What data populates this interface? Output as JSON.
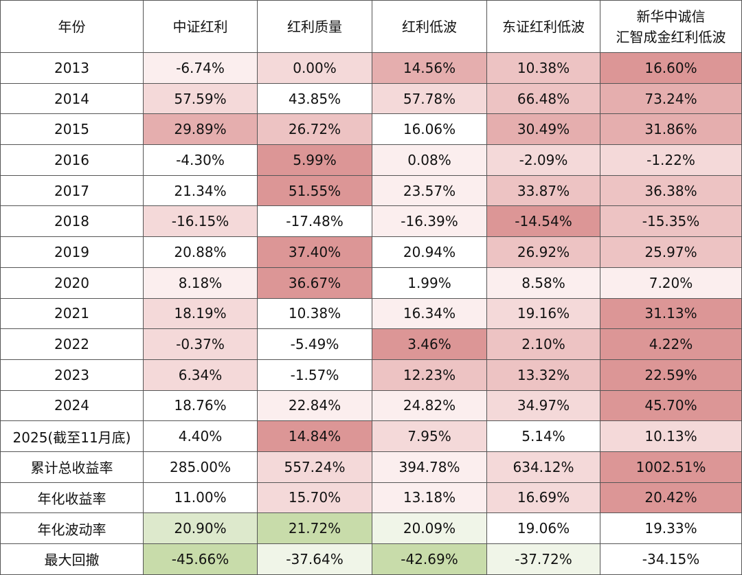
{
  "table": {
    "header": [
      "年份",
      "中证红利",
      "红利质量",
      "红利低波",
      "东证红利低波",
      "新华中诚信\n汇智成金红利低波"
    ],
    "rows": [
      [
        "2013",
        "-6.74%",
        "0.00%",
        "14.56%",
        "10.38%",
        "16.60%"
      ],
      [
        "2014",
        "57.59%",
        "43.85%",
        "57.78%",
        "66.48%",
        "73.24%"
      ],
      [
        "2015",
        "29.89%",
        "26.72%",
        "16.06%",
        "30.49%",
        "31.86%"
      ],
      [
        "2016",
        "-4.30%",
        "5.99%",
        "0.08%",
        "-2.09%",
        "-1.22%"
      ],
      [
        "2017",
        "21.34%",
        "51.55%",
        "23.57%",
        "33.87%",
        "36.38%"
      ],
      [
        "2018",
        "-16.15%",
        "-17.48%",
        "-16.39%",
        "-14.54%",
        "-15.35%"
      ],
      [
        "2019",
        "20.88%",
        "37.40%",
        "20.94%",
        "26.92%",
        "25.97%"
      ],
      [
        "2020",
        "8.18%",
        "36.67%",
        "1.99%",
        "8.58%",
        "7.20%"
      ],
      [
        "2021",
        "18.19%",
        "10.38%",
        "16.34%",
        "19.16%",
        "31.13%"
      ],
      [
        "2022",
        "-0.37%",
        "-5.49%",
        "3.46%",
        "2.10%",
        "4.22%"
      ],
      [
        "2023",
        "6.34%",
        "-1.57%",
        "12.23%",
        "13.32%",
        "22.59%"
      ],
      [
        "2024",
        "18.76%",
        "22.84%",
        "24.82%",
        "34.97%",
        "45.70%"
      ],
      [
        "2025(截至11月底)",
        "4.40%",
        "14.84%",
        "7.95%",
        "5.14%",
        "10.13%"
      ],
      [
        "累计总收益率",
        "285.00%",
        "557.24%",
        "394.78%",
        "634.12%",
        "1002.51%"
      ],
      [
        "年化收益率",
        "11.00%",
        "15.70%",
        "13.18%",
        "16.69%",
        "20.42%"
      ],
      [
        "年化波动率",
        "20.90%",
        "21.72%",
        "20.09%",
        "19.06%",
        "19.33%"
      ],
      [
        "最大回撤",
        "-45.66%",
        "-37.64%",
        "-42.69%",
        "-37.72%",
        "-34.15%"
      ]
    ],
    "colors": [
      [
        "#fbeeee",
        "#f4d9d9",
        "#e5aeae",
        "#edc3c3",
        "#dc9696"
      ],
      [
        "#f4d9d9",
        "#ffffff",
        "#f4d9d9",
        "#edc3c3",
        "#e5aeae"
      ],
      [
        "#e5aeae",
        "#edc3c3",
        "#ffffff",
        "#e5aeae",
        "#e5aeae"
      ],
      [
        "#ffffff",
        "#dc9696",
        "#fbeeee",
        "#f4d9d9",
        "#f4d9d9"
      ],
      [
        "#ffffff",
        "#dc9696",
        "#fbeeee",
        "#edc3c3",
        "#edc3c3"
      ],
      [
        "#f4d9d9",
        "#ffffff",
        "#fbeeee",
        "#dc9696",
        "#edc3c3"
      ],
      [
        "#ffffff",
        "#dc9696",
        "#ffffff",
        "#edc3c3",
        "#edc3c3"
      ],
      [
        "#fbeeee",
        "#dc9696",
        "#ffffff",
        "#fbeeee",
        "#fbeeee"
      ],
      [
        "#f4d9d9",
        "#ffffff",
        "#fbeeee",
        "#f4d9d9",
        "#dc9696"
      ],
      [
        "#f4d9d9",
        "#ffffff",
        "#dc9696",
        "#edc3c3",
        "#dc9696"
      ],
      [
        "#f4d9d9",
        "#ffffff",
        "#edc3c3",
        "#edc3c3",
        "#dc9696"
      ],
      [
        "#ffffff",
        "#fbeeee",
        "#fbeeee",
        "#f4d9d9",
        "#dc9696"
      ],
      [
        "#ffffff",
        "#dc9696",
        "#f4d9d9",
        "#ffffff",
        "#f4d9d9"
      ],
      [
        "#ffffff",
        "#f4d9d9",
        "#fbeeee",
        "#f4d9d9",
        "#dc9696"
      ],
      [
        "#ffffff",
        "#f4d9d9",
        "#fbeeee",
        "#f4d9d9",
        "#dc9696"
      ],
      [
        "#dde9cc",
        "#c8dcaa",
        "#f0f5e8",
        "#ffffff",
        "#ffffff"
      ],
      [
        "#c8dcaa",
        "#f0f5e8",
        "#c8dcaa",
        "#f0f5e8",
        "#ffffff"
      ]
    ]
  }
}
